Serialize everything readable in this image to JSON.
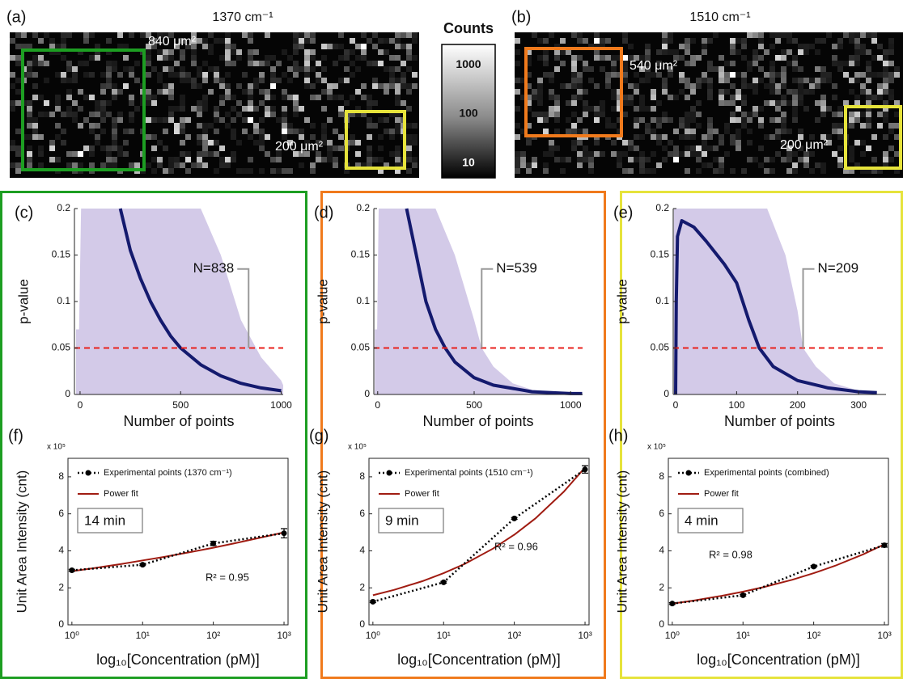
{
  "images": [
    {
      "label": "(a)",
      "title": "1370 cm⁻¹",
      "regions": [
        {
          "label": "840 μm²",
          "color": "#1d9e22"
        },
        {
          "label": "200 μm²",
          "color": "#e6e33b"
        }
      ]
    },
    {
      "label": "(b)",
      "title": "1510 cm⁻¹",
      "regions": [
        {
          "label": "540 μm²",
          "color": "#f07a1c"
        },
        {
          "label": "200 μm²",
          "color": "#e6e33b"
        }
      ]
    }
  ],
  "colorbar": {
    "title": "Counts",
    "log_scale": true,
    "lim": [
      5,
      2600
    ],
    "ticks": [
      1000,
      100,
      10
    ]
  },
  "chart_data": [
    {
      "type": "line",
      "panel_label": "(c)",
      "xlabel": "Number of points",
      "ylabel": "p-value",
      "xlim": [
        -28,
        1010
      ],
      "ylim": [
        0,
        0.2
      ],
      "xticks": [
        0,
        500,
        1000
      ],
      "yticks": [
        0,
        0.05,
        0.1,
        0.15,
        0.2
      ],
      "threshold": 0.05,
      "threshold_color": "#e8211c",
      "annotation": {
        "text": "N=838",
        "x": 838,
        "y": 0.135
      },
      "series": [
        {
          "kind": "area",
          "color": "#d3cae8",
          "x": [
            -20,
            -5,
            5,
            600,
            700,
            800,
            900,
            1000,
            1010
          ],
          "values": [
            0.07,
            0.07,
            0.2,
            0.2,
            0.15,
            0.08,
            0.04,
            0.015,
            0.01
          ]
        },
        {
          "kind": "line",
          "color": "#141a6e",
          "x": [
            200,
            250,
            300,
            350,
            400,
            450,
            500,
            600,
            700,
            800,
            900,
            1000
          ],
          "values": [
            0.2,
            0.155,
            0.125,
            0.1,
            0.08,
            0.063,
            0.05,
            0.032,
            0.02,
            0.012,
            0.007,
            0.004
          ]
        }
      ]
    },
    {
      "type": "line",
      "panel_label": "(d)",
      "xlabel": "Number of points",
      "ylabel": "p-value",
      "xlim": [
        -20,
        1062
      ],
      "ylim": [
        0,
        0.2
      ],
      "xticks": [
        0,
        500,
        1000
      ],
      "yticks": [
        0,
        0.05,
        0.1,
        0.15,
        0.2
      ],
      "threshold": 0.05,
      "threshold_color": "#e8211c",
      "annotation": {
        "text": "N=539",
        "x": 539,
        "y": 0.135
      },
      "series": [
        {
          "kind": "area",
          "color": "#d3cae8",
          "x": [
            -15,
            -3,
            5,
            300,
            400,
            500,
            539,
            600,
            700,
            800,
            1000,
            1060
          ],
          "values": [
            0.07,
            0.07,
            0.2,
            0.2,
            0.15,
            0.08,
            0.05,
            0.03,
            0.012,
            0.005,
            0.001,
            0.001
          ]
        },
        {
          "kind": "line",
          "color": "#141a6e",
          "x": [
            150,
            200,
            250,
            300,
            350,
            400,
            500,
            600,
            800,
            1000,
            1060
          ],
          "values": [
            0.2,
            0.15,
            0.1,
            0.07,
            0.05,
            0.035,
            0.018,
            0.01,
            0.003,
            0.001,
            0.001
          ]
        }
      ]
    },
    {
      "type": "line",
      "panel_label": "(e)",
      "xlabel": "Number of points",
      "ylabel": "p-value",
      "xlim": [
        -4,
        345
      ],
      "ylim": [
        0,
        0.2
      ],
      "xticks": [
        0,
        100,
        200,
        300
      ],
      "yticks": [
        0,
        0.05,
        0.1,
        0.15,
        0.2
      ],
      "threshold": 0.05,
      "threshold_color": "#e8211c",
      "annotation": {
        "text": "N=209",
        "x": 209,
        "y": 0.135
      },
      "series": [
        {
          "kind": "area",
          "color": "#d3cae8",
          "x": [
            -3,
            0,
            150,
            180,
            200,
            209,
            230,
            260,
            300,
            330
          ],
          "values": [
            0.2,
            0.2,
            0.2,
            0.15,
            0.09,
            0.05,
            0.03,
            0.012,
            0.004,
            0.002
          ]
        },
        {
          "kind": "line",
          "color": "#141a6e",
          "x": [
            0,
            1,
            3,
            10,
            30,
            50,
            80,
            100,
            120,
            137,
            160,
            200,
            250,
            300,
            330
          ],
          "values": [
            0,
            0.1,
            0.17,
            0.187,
            0.18,
            0.165,
            0.14,
            0.12,
            0.08,
            0.05,
            0.03,
            0.015,
            0.007,
            0.003,
            0.002
          ]
        }
      ]
    },
    {
      "type": "fit",
      "panel_label": "(f)",
      "xlabel": "log₁₀[Concentration (pM)]",
      "ylabel": "Unit Area Intensity (cnt)",
      "y_multiplier": "x 10⁵",
      "log_x": true,
      "xlim": [
        0.88,
        1140
      ],
      "ylim": [
        0,
        9
      ],
      "xticks": [
        {
          "value": 1,
          "label": "10⁰"
        },
        {
          "value": 10,
          "label": "10¹"
        },
        {
          "value": 100,
          "label": "10²"
        },
        {
          "value": 1000,
          "label": "10³"
        }
      ],
      "yticks": [
        0,
        2,
        4,
        6,
        8
      ],
      "time_label": "14 min",
      "r2_label": "R² = 0.95",
      "legend": "upper left",
      "x": [
        1,
        10,
        100,
        1000
      ],
      "series": [
        {
          "name": "Experimental points (1370 cm⁻¹)",
          "color": "#000000",
          "style": "dotted",
          "values": [
            2.95,
            3.25,
            4.4,
            4.95
          ],
          "errors": [
            0.05,
            0.05,
            0.12,
            0.25
          ]
        },
        {
          "name": "Power fit",
          "color": "#a01c12",
          "x": [
            1,
            2,
            5,
            10,
            20,
            50,
            100,
            200,
            500,
            1000
          ],
          "values": [
            2.9,
            3.06,
            3.29,
            3.48,
            3.67,
            3.95,
            4.17,
            4.41,
            4.74,
            5.0
          ]
        }
      ]
    },
    {
      "type": "fit",
      "panel_label": "(g)",
      "xlabel": "log₁₀[Concentration (pM)]",
      "ylabel": "Unit Area Intensity (cnt)",
      "y_multiplier": "x 10⁵",
      "log_x": true,
      "xlim": [
        0.88,
        1140
      ],
      "ylim": [
        0,
        9
      ],
      "xticks": [
        {
          "value": 1,
          "label": "10⁰"
        },
        {
          "value": 10,
          "label": "10¹"
        },
        {
          "value": 100,
          "label": "10²"
        },
        {
          "value": 1000,
          "label": "10³"
        }
      ],
      "yticks": [
        0,
        2,
        4,
        6,
        8
      ],
      "time_label": "9 min",
      "r2_label": "R² = 0.96",
      "legend": "upper left",
      "x": [
        1,
        10,
        100,
        1000
      ],
      "series": [
        {
          "name": "Experimental points (1510 cm⁻¹)",
          "color": "#000000",
          "style": "dotted",
          "values": [
            1.25,
            2.3,
            5.75,
            8.4
          ],
          "errors": [
            0.05,
            0.05,
            0.05,
            0.2
          ]
        },
        {
          "name": "Power fit",
          "color": "#a01c12",
          "x": [
            1,
            2,
            5,
            10,
            20,
            50,
            100,
            200,
            500,
            1000
          ],
          "values": [
            1.6,
            1.89,
            2.36,
            2.79,
            3.3,
            4.12,
            4.87,
            5.76,
            7.19,
            8.5
          ]
        }
      ]
    },
    {
      "type": "fit",
      "panel_label": "(h)",
      "xlabel": "log₁₀[Concentration (pM)]",
      "ylabel": "Unit Area Intensity (cnt)",
      "y_multiplier": "x 10⁵",
      "log_x": true,
      "xlim": [
        0.88,
        1140
      ],
      "ylim": [
        0,
        9
      ],
      "xticks": [
        {
          "value": 1,
          "label": "10⁰"
        },
        {
          "value": 10,
          "label": "10¹"
        },
        {
          "value": 100,
          "label": "10²"
        },
        {
          "value": 1000,
          "label": "10³"
        }
      ],
      "yticks": [
        0,
        2,
        4,
        6,
        8
      ],
      "time_label": "4 min",
      "r2_label": "R² = 0.98",
      "legend": "upper left",
      "x": [
        1,
        10,
        100,
        1000
      ],
      "series": [
        {
          "name": "Experimental points (combined)",
          "color": "#000000",
          "style": "dotted",
          "values": [
            1.15,
            1.6,
            3.15,
            4.3
          ],
          "errors": [
            0.05,
            0.05,
            0.05,
            0.1
          ]
        },
        {
          "name": "Power fit",
          "color": "#a01c12",
          "x": [
            1,
            2,
            5,
            10,
            20,
            50,
            100,
            200,
            500,
            1000
          ],
          "values": [
            1.15,
            1.31,
            1.57,
            1.79,
            2.05,
            2.44,
            2.79,
            3.19,
            3.81,
            4.35
          ]
        }
      ]
    }
  ]
}
